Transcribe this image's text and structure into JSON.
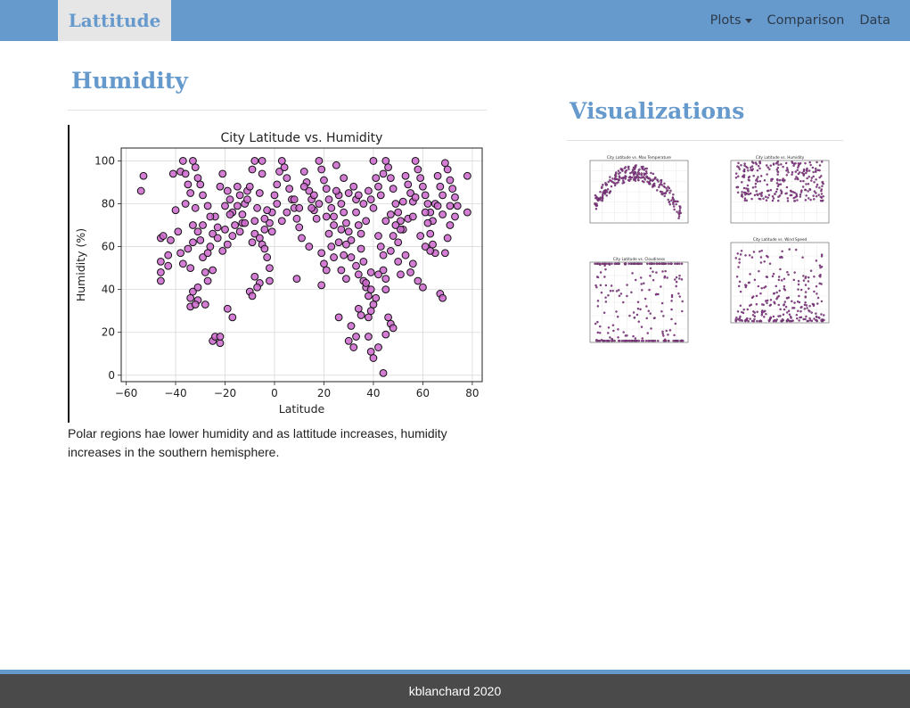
{
  "nav": {
    "brand": "Lattitude",
    "links": [
      {
        "label": "Plots",
        "dropdown": true
      },
      {
        "label": "Comparison"
      },
      {
        "label": "Data"
      }
    ]
  },
  "main": {
    "heading": "Humidity",
    "caption": "Polar regions hae lower humidity and as lattitude increases, humidity increases in the southern hemisphere."
  },
  "sidebar": {
    "heading": "Visualizations",
    "thumbnails": [
      {
        "title": "City Latitude vs. Max Temperature",
        "name": "max-temperature"
      },
      {
        "title": "City Latitude vs. Humidity",
        "name": "humidity"
      },
      {
        "title": "City Latitude vs. Cloudiness",
        "name": "cloudiness"
      },
      {
        "title": "City Latitude vs. Wind Speed",
        "name": "wind-speed"
      }
    ]
  },
  "footer": {
    "text": "kblanchard 2020"
  },
  "colors": {
    "accent": "#6699cc",
    "point_fill": "#cc66cc",
    "footer_bg": "#4a4a4a"
  },
  "chart_data": {
    "type": "scatter",
    "title": "City Latitude vs. Humidity",
    "xlabel": "Latitude",
    "ylabel": "Humidity (%)",
    "xlim": [
      -62,
      84
    ],
    "ylim": [
      -3,
      106
    ],
    "xticks": [
      -60,
      -40,
      -20,
      0,
      20,
      40,
      60,
      80
    ],
    "yticks": [
      0,
      20,
      40,
      60,
      80,
      100
    ],
    "grid": true,
    "marker_color": "#cc66cc",
    "points": [
      [
        -53,
        93
      ],
      [
        -54,
        86
      ],
      [
        -46,
        64
      ],
      [
        -45,
        65
      ],
      [
        -46,
        53
      ],
      [
        -46,
        48
      ],
      [
        -46,
        44
      ],
      [
        -43,
        56
      ],
      [
        -43,
        51
      ],
      [
        -42,
        63
      ],
      [
        -41,
        94
      ],
      [
        -40,
        77
      ],
      [
        -39,
        67
      ],
      [
        -38,
        95
      ],
      [
        -37,
        100
      ],
      [
        -36,
        94
      ],
      [
        -35,
        89
      ],
      [
        -34,
        85
      ],
      [
        -33,
        100
      ],
      [
        -32,
        97
      ],
      [
        -31,
        92
      ],
      [
        -30,
        89
      ],
      [
        -29,
        84
      ],
      [
        -32,
        78
      ],
      [
        -36,
        80
      ],
      [
        -35,
        59
      ],
      [
        -33,
        62
      ],
      [
        -31,
        67
      ],
      [
        -33,
        70
      ],
      [
        -37,
        52
      ],
      [
        -38,
        57
      ],
      [
        -34,
        50
      ],
      [
        -33,
        39
      ],
      [
        -34,
        36
      ],
      [
        -34,
        32
      ],
      [
        -31,
        35
      ],
      [
        -31,
        41
      ],
      [
        -32,
        33
      ],
      [
        -29,
        55
      ],
      [
        -28,
        48
      ],
      [
        -27,
        44
      ],
      [
        -28,
        33
      ],
      [
        -25,
        16
      ],
      [
        -24,
        18
      ],
      [
        -22,
        15
      ],
      [
        -22,
        18
      ],
      [
        -25,
        66
      ],
      [
        -26,
        60
      ],
      [
        -24,
        74
      ],
      [
        -23,
        69
      ],
      [
        -22,
        88
      ],
      [
        -21,
        94
      ],
      [
        -20,
        79
      ],
      [
        -19,
        86
      ],
      [
        -18,
        82
      ],
      [
        -17,
        76
      ],
      [
        -16,
        70
      ],
      [
        -15,
        88
      ],
      [
        -14,
        84
      ],
      [
        -13,
        71
      ],
      [
        -12,
        80
      ],
      [
        -11,
        86
      ],
      [
        -10,
        88
      ],
      [
        -9,
        62
      ],
      [
        -8,
        66
      ],
      [
        -8,
        72
      ],
      [
        -7,
        78
      ],
      [
        -6,
        85
      ],
      [
        -5,
        94
      ],
      [
        -5,
        100
      ],
      [
        -8,
        100
      ],
      [
        -9,
        96
      ],
      [
        -6,
        64
      ],
      [
        -5,
        61
      ],
      [
        -4,
        68
      ],
      [
        -3,
        55
      ],
      [
        -2,
        50
      ],
      [
        -2,
        44
      ],
      [
        -6,
        43
      ],
      [
        -7,
        41
      ],
      [
        -8,
        46
      ],
      [
        -10,
        39
      ],
      [
        -9,
        37
      ],
      [
        -4,
        59
      ],
      [
        -2,
        71
      ],
      [
        -1,
        76
      ],
      [
        0,
        84
      ],
      [
        1,
        89
      ],
      [
        2,
        95
      ],
      [
        3,
        100
      ],
      [
        4,
        97
      ],
      [
        5,
        92
      ],
      [
        6,
        87
      ],
      [
        7,
        82
      ],
      [
        8,
        78
      ],
      [
        9,
        73
      ],
      [
        10,
        69
      ],
      [
        12,
        95
      ],
      [
        13,
        90
      ],
      [
        14,
        86
      ],
      [
        15,
        82
      ],
      [
        16,
        77
      ],
      [
        17,
        73
      ],
      [
        18,
        100
      ],
      [
        19,
        96
      ],
      [
        20,
        91
      ],
      [
        21,
        87
      ],
      [
        22,
        82
      ],
      [
        23,
        78
      ],
      [
        24,
        74
      ],
      [
        11,
        64
      ],
      [
        14,
        60
      ],
      [
        9,
        45
      ],
      [
        19,
        57
      ],
      [
        19,
        42
      ],
      [
        25,
        98
      ],
      [
        26,
        84
      ],
      [
        27,
        80
      ],
      [
        28,
        76
      ],
      [
        29,
        71
      ],
      [
        30,
        67
      ],
      [
        31,
        63
      ],
      [
        26,
        62
      ],
      [
        28,
        56
      ],
      [
        27,
        49
      ],
      [
        29,
        45
      ],
      [
        26,
        27
      ],
      [
        31,
        23
      ],
      [
        32,
        13
      ],
      [
        33,
        18
      ],
      [
        30,
        16
      ],
      [
        34,
        31
      ],
      [
        35,
        28
      ],
      [
        36,
        44
      ],
      [
        37,
        41
      ],
      [
        38,
        37
      ],
      [
        39,
        48
      ],
      [
        36,
        53
      ],
      [
        35,
        59
      ],
      [
        33,
        76
      ],
      [
        34,
        70
      ],
      [
        35,
        66
      ],
      [
        37,
        72
      ],
      [
        38,
        86
      ],
      [
        39,
        82
      ],
      [
        40,
        78
      ],
      [
        41,
        92
      ],
      [
        42,
        88
      ],
      [
        43,
        84
      ],
      [
        44,
        94
      ],
      [
        45,
        100
      ],
      [
        46,
        97
      ],
      [
        47,
        92
      ],
      [
        48,
        87
      ],
      [
        40,
        100
      ],
      [
        42,
        65
      ],
      [
        43,
        60
      ],
      [
        44,
        56
      ],
      [
        44,
        49
      ],
      [
        45,
        45
      ],
      [
        41,
        36
      ],
      [
        40,
        33
      ],
      [
        39,
        30
      ],
      [
        38,
        27
      ],
      [
        38,
        18
      ],
      [
        39,
        11
      ],
      [
        40,
        8
      ],
      [
        42,
        13
      ],
      [
        44,
        1
      ],
      [
        45,
        19
      ],
      [
        46,
        27
      ],
      [
        47,
        24
      ],
      [
        48,
        22
      ],
      [
        45,
        40
      ],
      [
        49,
        80
      ],
      [
        50,
        76
      ],
      [
        51,
        72
      ],
      [
        52,
        68
      ],
      [
        53,
        93
      ],
      [
        54,
        89
      ],
      [
        55,
        85
      ],
      [
        56,
        81
      ],
      [
        57,
        100
      ],
      [
        58,
        96
      ],
      [
        59,
        92
      ],
      [
        60,
        88
      ],
      [
        61,
        84
      ],
      [
        62,
        80
      ],
      [
        63,
        76
      ],
      [
        64,
        72
      ],
      [
        50,
        62
      ],
      [
        53,
        56
      ],
      [
        55,
        48
      ],
      [
        56,
        52
      ],
      [
        58,
        44
      ],
      [
        60,
        41
      ],
      [
        62,
        71
      ],
      [
        63,
        66
      ],
      [
        64,
        61
      ],
      [
        65,
        57
      ],
      [
        66,
        93
      ],
      [
        67,
        88
      ],
      [
        68,
        84
      ],
      [
        69,
        99
      ],
      [
        70,
        96
      ],
      [
        71,
        91
      ],
      [
        72,
        87
      ],
      [
        73,
        83
      ],
      [
        74,
        79
      ],
      [
        78,
        93
      ],
      [
        78,
        76
      ],
      [
        69,
        57
      ],
      [
        67,
        38
      ],
      [
        68,
        36
      ],
      [
        70,
        64
      ],
      [
        71,
        70
      ],
      [
        65,
        80
      ],
      [
        61,
        76
      ],
      [
        57,
        83
      ],
      [
        54,
        73
      ],
      [
        52,
        81
      ],
      [
        48,
        65
      ],
      [
        47,
        58
      ],
      [
        50,
        53
      ],
      [
        51,
        47
      ],
      [
        20,
        52
      ],
      [
        21,
        49
      ],
      [
        22,
        66
      ],
      [
        23,
        60
      ],
      [
        24,
        55
      ],
      [
        15,
        78
      ],
      [
        12,
        88
      ],
      [
        8,
        82
      ],
      [
        5,
        76
      ],
      [
        3,
        72
      ],
      [
        1,
        80
      ],
      [
        -1,
        67
      ],
      [
        -3,
        77
      ],
      [
        -12,
        71
      ],
      [
        -15,
        79
      ],
      [
        -18,
        75
      ],
      [
        -20,
        68
      ],
      [
        -23,
        64
      ],
      [
        -26,
        74
      ],
      [
        -27,
        79
      ],
      [
        -29,
        70
      ],
      [
        -30,
        63
      ],
      [
        -27,
        57
      ],
      [
        -25,
        49
      ],
      [
        -19,
        31
      ],
      [
        -17,
        27
      ],
      [
        -21,
        58
      ],
      [
        -19,
        61
      ],
      [
        -17,
        65
      ],
      [
        -14,
        67
      ],
      [
        -13,
        75
      ],
      [
        -11,
        82
      ],
      [
        -4,
        73
      ],
      [
        10,
        78
      ],
      [
        16,
        84
      ],
      [
        32,
        88
      ],
      [
        33,
        82
      ],
      [
        34,
        84
      ],
      [
        36,
        80
      ],
      [
        30,
        85
      ],
      [
        28,
        92
      ],
      [
        25,
        86
      ],
      [
        18,
        80
      ],
      [
        21,
        74
      ],
      [
        24,
        70
      ],
      [
        27,
        68
      ],
      [
        29,
        61
      ],
      [
        31,
        55
      ],
      [
        33,
        51
      ],
      [
        34,
        47
      ],
      [
        37,
        43
      ],
      [
        39,
        40
      ],
      [
        42,
        47
      ],
      [
        45,
        72
      ],
      [
        47,
        75
      ],
      [
        49,
        70
      ],
      [
        51,
        68
      ],
      [
        56,
        74
      ],
      [
        59,
        65
      ],
      [
        61,
        60
      ],
      [
        63,
        58
      ],
      [
        66,
        79
      ],
      [
        68,
        75
      ],
      [
        71,
        79
      ],
      [
        73,
        74
      ]
    ]
  }
}
